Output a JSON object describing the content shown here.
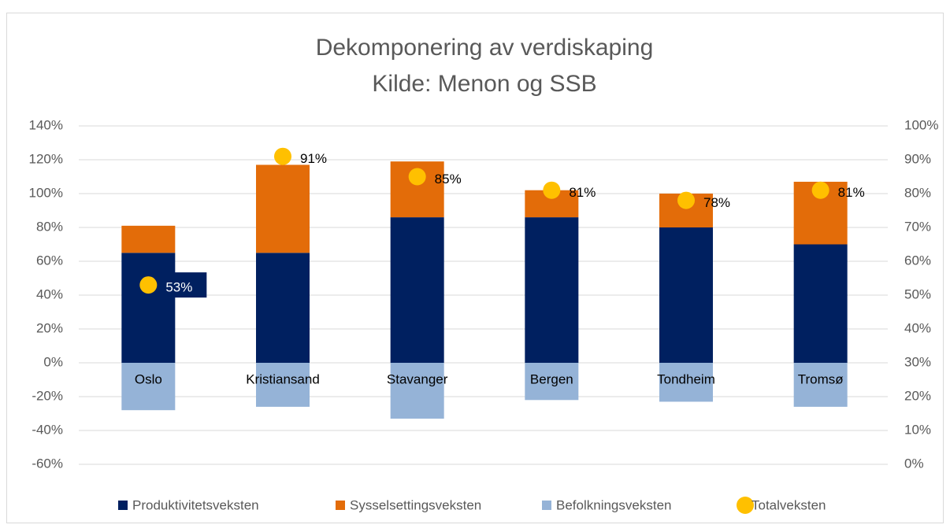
{
  "chart_data": {
    "type": "stacked-bar-with-dots",
    "title": "Dekomponering av verdiskaping",
    "subtitle": "Kilde: Menon og SSB",
    "categories": [
      "Oslo",
      "Kristiansand",
      "Stavanger",
      "Bergen",
      "Tondheim",
      "Tromsø"
    ],
    "series": [
      {
        "name": "Produktivitetsveksten",
        "color": "#002060",
        "values": [
          65,
          65,
          86,
          86,
          80,
          70
        ]
      },
      {
        "name": "Sysselsettingsveksten",
        "color": "#e36c09",
        "values": [
          16,
          52,
          33,
          16,
          20,
          37
        ]
      },
      {
        "name": "Befolkningsveksten",
        "color": "#95b3d7",
        "values": [
          -28,
          -26,
          -33,
          -22,
          -23,
          -26
        ]
      },
      {
        "name": "Totalveksten",
        "color": "#ffc000",
        "axis": "y2",
        "values": [
          53,
          91,
          85,
          81,
          78,
          81
        ],
        "value_labels": [
          "53%",
          "91%",
          "85%",
          "81%",
          "78%",
          "81%"
        ]
      }
    ],
    "ylim": [
      -60,
      140
    ],
    "yticks": [
      {
        "value": -60,
        "label": "-60%"
      },
      {
        "value": -40,
        "label": "-40%"
      },
      {
        "value": -20,
        "label": "-20%"
      },
      {
        "value": 0,
        "label": "0%"
      },
      {
        "value": 20,
        "label": "20%"
      },
      {
        "value": 40,
        "label": "40%"
      },
      {
        "value": 60,
        "label": "60%"
      },
      {
        "value": 80,
        "label": "80%"
      },
      {
        "value": 100,
        "label": "100%"
      },
      {
        "value": 120,
        "label": "120%"
      },
      {
        "value": 140,
        "label": "140%"
      }
    ],
    "y2lim": [
      0,
      100
    ],
    "y2ticks": [
      {
        "value": 0,
        "label": "0%"
      },
      {
        "value": 10,
        "label": "10%"
      },
      {
        "value": 20,
        "label": "20%"
      },
      {
        "value": 30,
        "label": "30%"
      },
      {
        "value": 40,
        "label": "40%"
      },
      {
        "value": 50,
        "label": "50%"
      },
      {
        "value": 60,
        "label": "60%"
      },
      {
        "value": 70,
        "label": "70%"
      },
      {
        "value": 80,
        "label": "80%"
      },
      {
        "value": 90,
        "label": "90%"
      },
      {
        "value": 100,
        "label": "100%"
      }
    ],
    "grid": true,
    "legend": "bottom"
  }
}
